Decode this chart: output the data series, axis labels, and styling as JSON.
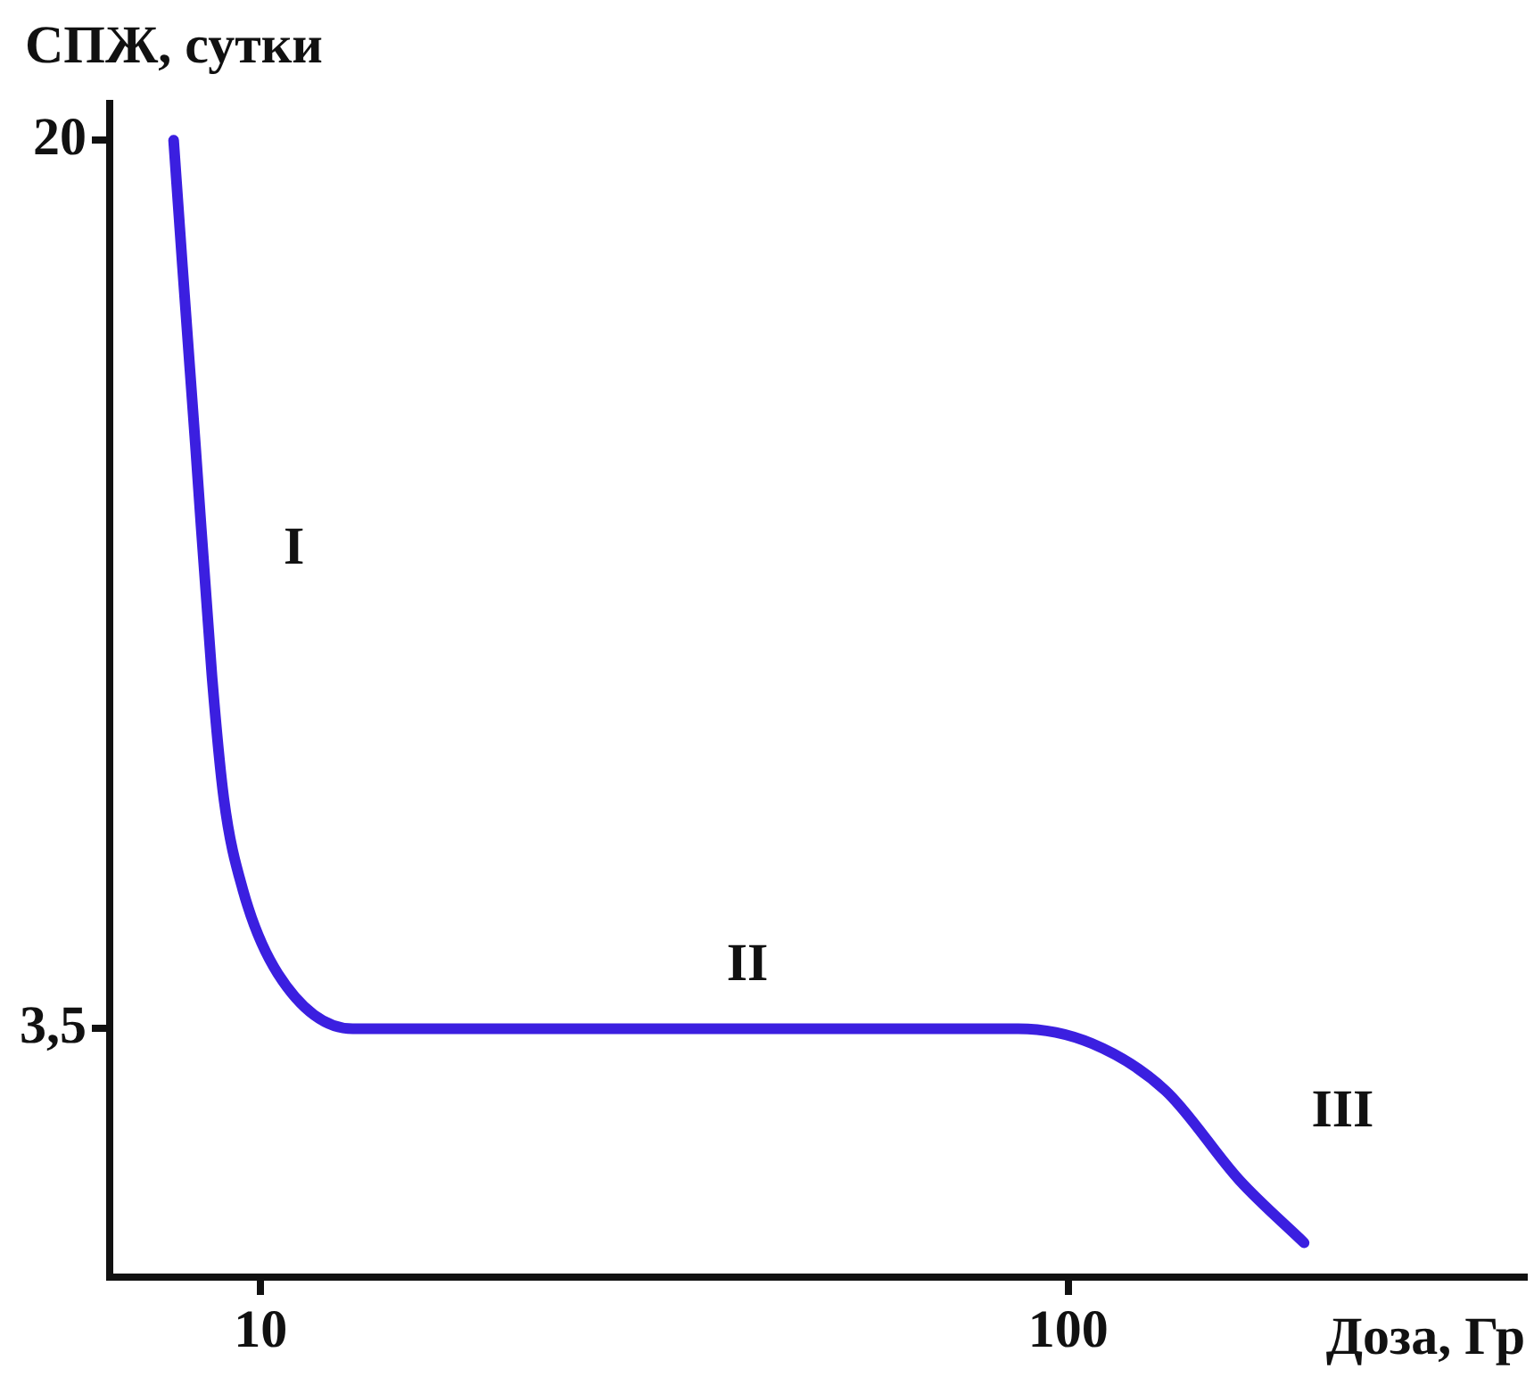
{
  "chart_data": {
    "type": "line",
    "xlabel": "Доза, Гр",
    "ylabel": "СПЖ, сутки",
    "log": "xy",
    "x": [
      7.8,
      8.0,
      8.3,
      8.7,
      9.0,
      9.5,
      10.5,
      13.0,
      19.8,
      43.7,
      86.7,
      107,
      132,
      163,
      196
    ],
    "series": [
      {
        "color": "#3b1fe0",
        "values": [
          20,
          15.6,
          11.0,
          7.0,
          5.5,
          4.6,
          3.9,
          3.5,
          3.5,
          3.5,
          3.5,
          3.4,
          3.1,
          2.6,
          2.3
        ]
      }
    ],
    "xlim": [
      6.5,
      370
    ],
    "ylim": [
      2.15,
      21.5
    ],
    "xticks": [
      10,
      100
    ],
    "yticks": [
      20,
      {
        "value": 3.5,
        "label": "3,5"
      }
    ],
    "annotations": [
      "I",
      "II",
      "III"
    ],
    "grid": false,
    "legend": false,
    "marker": "none",
    "line_style": "solid"
  }
}
